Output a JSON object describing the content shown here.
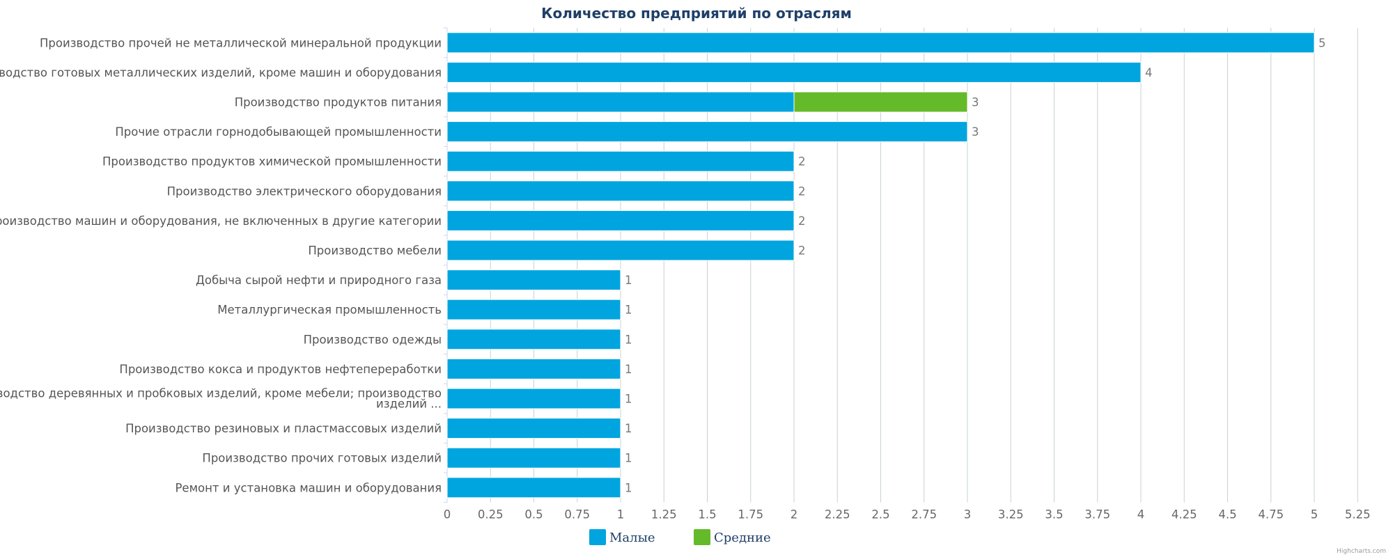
{
  "chart_data": {
    "type": "bar",
    "orientation": "horizontal",
    "stacked": true,
    "title": "Количество предприятий по отраслям",
    "categories": [
      "Производство прочей не металлической минеральной продукции",
      "Производство готовых металлических изделий, кроме машин и оборудования",
      "Производство продуктов питания",
      "Прочие отрасли горнодобывающей промышленности",
      "Производство продуктов химической промышленности",
      "Производство электрического оборудования",
      "Производство машин и оборудования, не включенных в другие категории",
      "Производство мебели",
      "Добыча сырой нефти и природного газа",
      "Металлургическая промышленность",
      "Производство одежды",
      "Производство кокса и продуктов нефтепереработки",
      "Производство деревянных и пробковых изделий, кроме мебели; производство изделий ...",
      "Производство резиновых и пластмассовых изделий",
      "Производство прочих готовых изделий",
      "Ремонт и установка машин и оборудования"
    ],
    "series": [
      {
        "name": "Малые",
        "color": "#00a5df",
        "values": [
          5,
          4,
          2,
          3,
          2,
          2,
          2,
          2,
          1,
          1,
          1,
          1,
          1,
          1,
          1,
          1
        ]
      },
      {
        "name": "Средние",
        "color": "#65ba2a",
        "values": [
          0,
          0,
          1,
          0,
          0,
          0,
          0,
          0,
          0,
          0,
          0,
          0,
          0,
          0,
          0,
          0
        ]
      }
    ],
    "totals": [
      5,
      4,
      3,
      3,
      2,
      2,
      2,
      2,
      1,
      1,
      1,
      1,
      1,
      1,
      1,
      1
    ],
    "xlim": [
      0,
      5.25
    ],
    "xticks": [
      "0",
      "0.25",
      "0.5",
      "0.75",
      "1",
      "1.25",
      "1.5",
      "1.75",
      "2",
      "2.25",
      "2.5",
      "2.75",
      "3",
      "3.25",
      "3.5",
      "3.75",
      "4",
      "4.25",
      "4.5",
      "4.75",
      "5",
      "5.25"
    ],
    "grid": true,
    "legend_position": "bottom-center",
    "credit": "Highcharts.com"
  }
}
